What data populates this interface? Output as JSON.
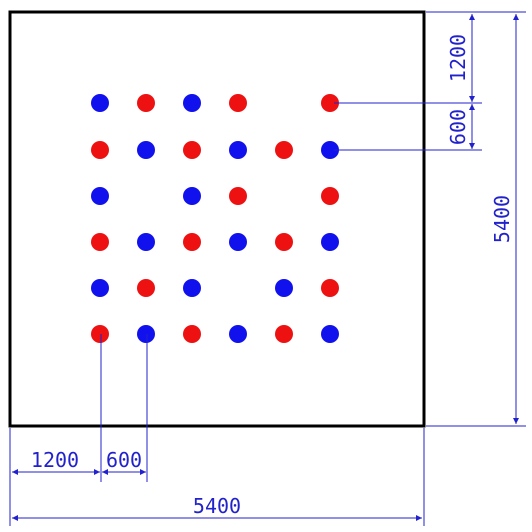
{
  "colors": {
    "frame": "#000000",
    "dimension": "#2222cc",
    "red_dot": "#ee1111",
    "blue_dot": "#1111ee"
  },
  "dimensions": {
    "bottom_offset": "1200",
    "bottom_spacing": "600",
    "bottom_total": "5400",
    "right_offset": "1200",
    "right_spacing": "600",
    "right_total": "5400"
  },
  "grid": {
    "rows": [
      [
        "blue",
        "red",
        "blue",
        "red",
        "",
        "red"
      ],
      [
        "red",
        "blue",
        "red",
        "blue",
        "red",
        "blue"
      ],
      [
        "blue",
        "",
        "blue",
        "red",
        "",
        "red"
      ],
      [
        "red",
        "blue",
        "red",
        "blue",
        "red",
        "blue"
      ],
      [
        "blue",
        "red",
        "blue",
        "",
        "blue",
        "red"
      ],
      [
        "red",
        "blue",
        "red",
        "blue",
        "red",
        "blue"
      ]
    ]
  }
}
